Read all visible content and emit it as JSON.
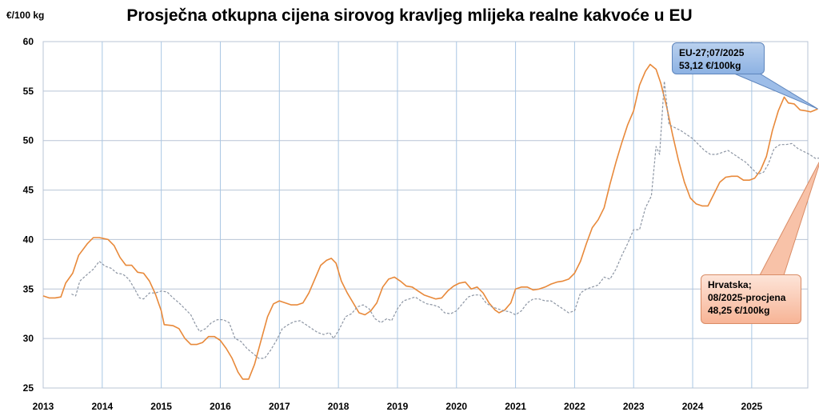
{
  "chart_data": {
    "type": "line",
    "title": "Prosječna otkupna cijena sirovog kravljeg mlijeka realne kakvoće u EU",
    "ylabel": "€/100 kg",
    "ylim": [
      25,
      60
    ],
    "yticks": [
      25,
      30,
      35,
      40,
      45,
      50,
      55,
      60
    ],
    "xlim": [
      2013,
      2025.95
    ],
    "xticks": [
      2013,
      2014,
      2015,
      2016,
      2017,
      2018,
      2019,
      2020,
      2021,
      2022,
      2023,
      2024,
      2025
    ],
    "grid": true,
    "series": [
      {
        "color": "#e8893a",
        "style": "solid",
        "points": [
          [
            2013.0,
            34.3
          ],
          [
            2013.1,
            34.1
          ],
          [
            2013.2,
            34.1
          ],
          [
            2013.3,
            34.2
          ],
          [
            2013.38,
            35.6
          ],
          [
            2013.5,
            36.6
          ],
          [
            2013.6,
            38.4
          ],
          [
            2013.75,
            39.6
          ],
          [
            2013.85,
            40.2
          ],
          [
            2013.95,
            40.2
          ],
          [
            2014.1,
            40.0
          ],
          [
            2014.2,
            39.4
          ],
          [
            2014.3,
            38.2
          ],
          [
            2014.4,
            37.4
          ],
          [
            2014.5,
            37.4
          ],
          [
            2014.6,
            36.7
          ],
          [
            2014.7,
            36.6
          ],
          [
            2014.8,
            35.8
          ],
          [
            2014.9,
            34.5
          ],
          [
            2015.0,
            32.8
          ],
          [
            2015.05,
            31.4
          ],
          [
            2015.2,
            31.3
          ],
          [
            2015.3,
            31.0
          ],
          [
            2015.4,
            30.0
          ],
          [
            2015.5,
            29.4
          ],
          [
            2015.6,
            29.4
          ],
          [
            2015.7,
            29.6
          ],
          [
            2015.8,
            30.2
          ],
          [
            2015.9,
            30.2
          ],
          [
            2016.0,
            29.8
          ],
          [
            2016.1,
            29.0
          ],
          [
            2016.2,
            28.0
          ],
          [
            2016.3,
            26.6
          ],
          [
            2016.38,
            25.9
          ],
          [
            2016.48,
            25.9
          ],
          [
            2016.58,
            27.4
          ],
          [
            2016.68,
            29.6
          ],
          [
            2016.8,
            32.2
          ],
          [
            2016.9,
            33.5
          ],
          [
            2017.0,
            33.8
          ],
          [
            2017.1,
            33.6
          ],
          [
            2017.2,
            33.4
          ],
          [
            2017.3,
            33.4
          ],
          [
            2017.4,
            33.6
          ],
          [
            2017.5,
            34.6
          ],
          [
            2017.6,
            36.0
          ],
          [
            2017.7,
            37.4
          ],
          [
            2017.8,
            37.9
          ],
          [
            2017.88,
            38.1
          ],
          [
            2017.96,
            37.6
          ],
          [
            2018.05,
            35.8
          ],
          [
            2018.15,
            34.6
          ],
          [
            2018.25,
            33.6
          ],
          [
            2018.35,
            32.6
          ],
          [
            2018.45,
            32.4
          ],
          [
            2018.55,
            32.8
          ],
          [
            2018.65,
            33.6
          ],
          [
            2018.75,
            35.2
          ],
          [
            2018.85,
            36.0
          ],
          [
            2018.95,
            36.2
          ],
          [
            2019.05,
            35.8
          ],
          [
            2019.15,
            35.3
          ],
          [
            2019.25,
            35.2
          ],
          [
            2019.35,
            34.8
          ],
          [
            2019.45,
            34.4
          ],
          [
            2019.55,
            34.2
          ],
          [
            2019.65,
            34.0
          ],
          [
            2019.75,
            34.1
          ],
          [
            2019.85,
            34.8
          ],
          [
            2019.95,
            35.3
          ],
          [
            2020.05,
            35.6
          ],
          [
            2020.15,
            35.7
          ],
          [
            2020.25,
            35.0
          ],
          [
            2020.35,
            35.2
          ],
          [
            2020.45,
            34.6
          ],
          [
            2020.55,
            33.6
          ],
          [
            2020.65,
            32.9
          ],
          [
            2020.72,
            32.6
          ],
          [
            2020.82,
            32.9
          ],
          [
            2020.92,
            33.6
          ],
          [
            2021.0,
            35.0
          ],
          [
            2021.1,
            35.2
          ],
          [
            2021.2,
            35.2
          ],
          [
            2021.3,
            34.9
          ],
          [
            2021.4,
            35.0
          ],
          [
            2021.5,
            35.2
          ],
          [
            2021.6,
            35.5
          ],
          [
            2021.7,
            35.7
          ],
          [
            2021.8,
            35.8
          ],
          [
            2021.9,
            36.0
          ],
          [
            2022.0,
            36.6
          ],
          [
            2022.1,
            37.8
          ],
          [
            2022.2,
            39.6
          ],
          [
            2022.3,
            41.2
          ],
          [
            2022.4,
            42.0
          ],
          [
            2022.5,
            43.2
          ],
          [
            2022.6,
            45.6
          ],
          [
            2022.7,
            47.8
          ],
          [
            2022.8,
            49.8
          ],
          [
            2022.9,
            51.6
          ],
          [
            2023.0,
            53.0
          ],
          [
            2023.1,
            55.6
          ],
          [
            2023.2,
            57.0
          ],
          [
            2023.28,
            57.7
          ],
          [
            2023.38,
            57.2
          ],
          [
            2023.46,
            55.8
          ],
          [
            2023.56,
            53.4
          ],
          [
            2023.66,
            50.6
          ],
          [
            2023.76,
            48.0
          ],
          [
            2023.86,
            45.8
          ],
          [
            2023.96,
            44.2
          ],
          [
            2024.06,
            43.6
          ],
          [
            2024.16,
            43.4
          ],
          [
            2024.26,
            43.4
          ],
          [
            2024.36,
            44.6
          ],
          [
            2024.46,
            45.8
          ],
          [
            2024.56,
            46.3
          ],
          [
            2024.66,
            46.4
          ],
          [
            2024.76,
            46.4
          ],
          [
            2024.86,
            46.0
          ],
          [
            2024.96,
            46.0
          ],
          [
            2025.05,
            46.2
          ],
          [
            2025.15,
            47.0
          ],
          [
            2025.25,
            48.4
          ],
          [
            2025.35,
            51.0
          ],
          [
            2025.45,
            53.0
          ],
          [
            2025.55,
            54.4
          ],
          [
            2025.62,
            53.8
          ],
          [
            2025.72,
            53.7
          ],
          [
            2025.82,
            53.1
          ],
          [
            2025.92,
            53.0
          ],
          [
            2026.0,
            52.9
          ],
          [
            2026.12,
            53.2
          ]
        ]
      },
      {
        "color": "#8c95a3",
        "style": "dashed",
        "points": [
          [
            2013.48,
            34.5
          ],
          [
            2013.55,
            34.3
          ],
          [
            2013.62,
            35.8
          ],
          [
            2013.75,
            36.5
          ],
          [
            2013.85,
            37.0
          ],
          [
            2013.95,
            37.8
          ],
          [
            2014.05,
            37.3
          ],
          [
            2014.15,
            37.1
          ],
          [
            2014.25,
            36.6
          ],
          [
            2014.35,
            36.5
          ],
          [
            2014.45,
            36.0
          ],
          [
            2014.55,
            35.0
          ],
          [
            2014.63,
            34.1
          ],
          [
            2014.7,
            34.0
          ],
          [
            2014.8,
            34.6
          ],
          [
            2014.9,
            34.6
          ],
          [
            2015.0,
            34.8
          ],
          [
            2015.1,
            34.7
          ],
          [
            2015.2,
            34.1
          ],
          [
            2015.3,
            33.6
          ],
          [
            2015.4,
            33.0
          ],
          [
            2015.5,
            32.4
          ],
          [
            2015.58,
            31.4
          ],
          [
            2015.65,
            30.7
          ],
          [
            2015.75,
            31.0
          ],
          [
            2015.85,
            31.6
          ],
          [
            2015.95,
            31.9
          ],
          [
            2016.05,
            31.9
          ],
          [
            2016.15,
            31.6
          ],
          [
            2016.25,
            30.0
          ],
          [
            2016.35,
            29.7
          ],
          [
            2016.45,
            29.0
          ],
          [
            2016.55,
            28.5
          ],
          [
            2016.65,
            28.0
          ],
          [
            2016.75,
            28.0
          ],
          [
            2016.85,
            28.8
          ],
          [
            2016.95,
            29.8
          ],
          [
            2017.05,
            31.0
          ],
          [
            2017.15,
            31.4
          ],
          [
            2017.25,
            31.7
          ],
          [
            2017.35,
            31.8
          ],
          [
            2017.45,
            31.4
          ],
          [
            2017.55,
            31.0
          ],
          [
            2017.65,
            30.6
          ],
          [
            2017.75,
            30.4
          ],
          [
            2017.85,
            30.6
          ],
          [
            2017.92,
            30.0
          ],
          [
            2018.02,
            31.0
          ],
          [
            2018.12,
            32.2
          ],
          [
            2018.22,
            32.5
          ],
          [
            2018.32,
            33.2
          ],
          [
            2018.42,
            33.4
          ],
          [
            2018.52,
            33.0
          ],
          [
            2018.62,
            32.0
          ],
          [
            2018.72,
            31.6
          ],
          [
            2018.82,
            32.0
          ],
          [
            2018.9,
            31.8
          ],
          [
            2019.0,
            33.0
          ],
          [
            2019.1,
            33.8
          ],
          [
            2019.2,
            34.0
          ],
          [
            2019.3,
            34.2
          ],
          [
            2019.4,
            33.8
          ],
          [
            2019.5,
            33.5
          ],
          [
            2019.6,
            33.4
          ],
          [
            2019.7,
            33.2
          ],
          [
            2019.8,
            32.6
          ],
          [
            2019.9,
            32.5
          ],
          [
            2020.0,
            32.8
          ],
          [
            2020.1,
            33.5
          ],
          [
            2020.2,
            34.2
          ],
          [
            2020.3,
            34.4
          ],
          [
            2020.4,
            34.4
          ],
          [
            2020.5,
            33.6
          ],
          [
            2020.6,
            33.2
          ],
          [
            2020.7,
            33.0
          ],
          [
            2020.8,
            32.8
          ],
          [
            2020.9,
            32.7
          ],
          [
            2021.0,
            32.4
          ],
          [
            2021.1,
            32.8
          ],
          [
            2021.2,
            33.6
          ],
          [
            2021.3,
            34.0
          ],
          [
            2021.4,
            34.0
          ],
          [
            2021.5,
            33.8
          ],
          [
            2021.6,
            33.8
          ],
          [
            2021.7,
            33.4
          ],
          [
            2021.8,
            33.0
          ],
          [
            2021.9,
            32.6
          ],
          [
            2022.0,
            32.8
          ],
          [
            2022.1,
            34.6
          ],
          [
            2022.2,
            35.0
          ],
          [
            2022.3,
            35.2
          ],
          [
            2022.4,
            35.4
          ],
          [
            2022.5,
            36.2
          ],
          [
            2022.6,
            36.0
          ],
          [
            2022.7,
            37.0
          ],
          [
            2022.8,
            38.4
          ],
          [
            2022.9,
            39.6
          ],
          [
            2023.0,
            41.0
          ],
          [
            2023.1,
            41.0
          ],
          [
            2023.2,
            43.2
          ],
          [
            2023.3,
            44.4
          ],
          [
            2023.38,
            49.4
          ],
          [
            2023.44,
            48.6
          ],
          [
            2023.52,
            56.0
          ],
          [
            2023.6,
            51.6
          ],
          [
            2023.7,
            51.3
          ],
          [
            2023.8,
            51.0
          ],
          [
            2023.9,
            50.6
          ],
          [
            2024.0,
            50.2
          ],
          [
            2024.1,
            49.6
          ],
          [
            2024.2,
            49.0
          ],
          [
            2024.3,
            48.6
          ],
          [
            2024.4,
            48.6
          ],
          [
            2024.5,
            48.8
          ],
          [
            2024.6,
            49.0
          ],
          [
            2024.7,
            48.6
          ],
          [
            2024.8,
            48.2
          ],
          [
            2024.9,
            47.8
          ],
          [
            2025.0,
            47.2
          ],
          [
            2025.1,
            46.6
          ],
          [
            2025.2,
            46.8
          ],
          [
            2025.28,
            47.6
          ],
          [
            2025.38,
            49.2
          ],
          [
            2025.48,
            49.6
          ],
          [
            2025.58,
            49.6
          ],
          [
            2025.68,
            49.7
          ],
          [
            2025.78,
            49.2
          ],
          [
            2025.88,
            48.9
          ],
          [
            2025.98,
            48.6
          ],
          [
            2026.08,
            48.2
          ],
          [
            2026.18,
            48.25
          ]
        ]
      }
    ],
    "annotations": [
      {
        "lines": [
          "EU-27;07/2025",
          "53,12 €/100kg"
        ],
        "color": "#9dbde8"
      },
      {
        "lines": [
          "Hrvatska;",
          "08/2025-procjena",
          "48,25 €/100kg"
        ],
        "color": "#f8c2a8"
      }
    ]
  }
}
